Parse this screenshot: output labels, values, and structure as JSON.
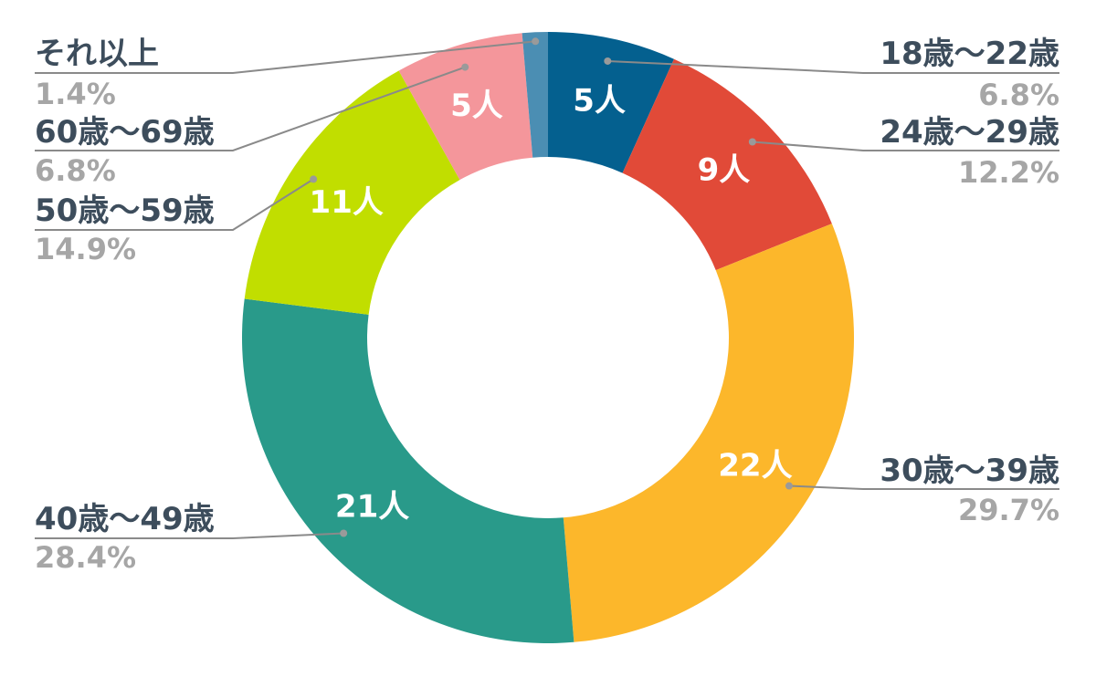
{
  "chart_data": {
    "type": "pie",
    "donut": true,
    "start": "top, clockwise",
    "slices": [
      {
        "category": "18歳〜22歳",
        "count": 5,
        "value_label": "5人",
        "percent": 6.8,
        "percent_label": "6.8%",
        "color": "#04608f"
      },
      {
        "category": "24歳〜29歳",
        "count": 9,
        "value_label": "9人",
        "percent": 12.2,
        "percent_label": "12.2%",
        "color": "#e14a38"
      },
      {
        "category": "30歳〜39歳",
        "count": 22,
        "value_label": "22人",
        "percent": 29.7,
        "percent_label": "29.7%",
        "color": "#fcb72b"
      },
      {
        "category": "40歳〜49歳",
        "count": 21,
        "value_label": "21人",
        "percent": 28.4,
        "percent_label": "28.4%",
        "color": "#299a8a"
      },
      {
        "category": "50歳〜59歳",
        "count": 11,
        "value_label": "11人",
        "percent": 14.9,
        "percent_label": "14.9%",
        "color": "#c1de00"
      },
      {
        "category": "60歳〜69歳",
        "count": 5,
        "value_label": "5人",
        "percent": 6.8,
        "percent_label": "6.8%",
        "color": "#f4969b"
      },
      {
        "category": "それ以上",
        "count": 1,
        "value_label": "",
        "percent": 1.4,
        "percent_label": "1.4%",
        "color": "#4b8eb3"
      }
    ]
  }
}
